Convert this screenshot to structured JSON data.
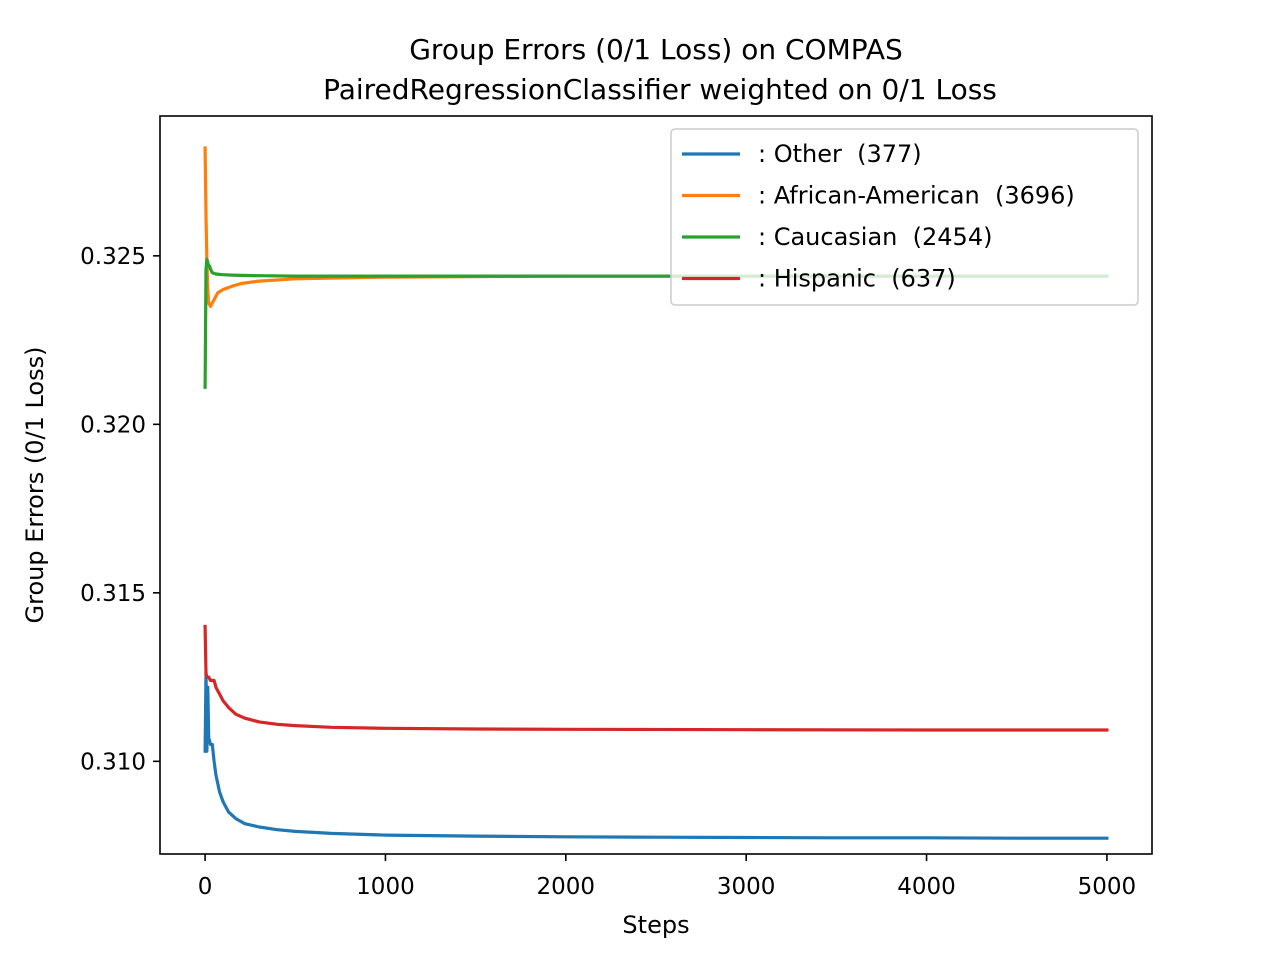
{
  "chart_data": {
    "type": "line",
    "title": "Group Errors (0/1 Loss) on COMPAS",
    "subtitle": "PairedRegressionClassifier weighted on 0/1 Loss",
    "xlabel": "Steps",
    "ylabel": "Group Errors (0/1 Loss)",
    "xlim": [
      -250,
      5250
    ],
    "ylim": [
      0.30725,
      0.32915
    ],
    "xticks": [
      0,
      1000,
      2000,
      3000,
      4000,
      5000
    ],
    "xtick_labels": [
      "0",
      "1000",
      "2000",
      "3000",
      "4000",
      "5000"
    ],
    "yticks": [
      0.31,
      0.315,
      0.32,
      0.325
    ],
    "ytick_labels": [
      "0.310",
      "0.315",
      "0.320",
      "0.325"
    ],
    "grid": false,
    "legend_position": "top-right",
    "series": [
      {
        "name": ": Other  (377)",
        "color": "#1f77b4",
        "x": [
          0,
          5,
          10,
          15,
          20,
          25,
          30,
          40,
          50,
          60,
          80,
          100,
          130,
          170,
          220,
          300,
          400,
          500,
          700,
          1000,
          1500,
          2000,
          2500,
          3000,
          3500,
          4000,
          4500,
          5000
        ],
        "y": [
          0.3103,
          0.3126,
          0.3103,
          0.3122,
          0.3107,
          0.3106,
          0.3105,
          0.3105,
          0.31,
          0.3096,
          0.3091,
          0.3088,
          0.3085,
          0.3083,
          0.30815,
          0.30805,
          0.30797,
          0.30792,
          0.30786,
          0.30781,
          0.30778,
          0.30776,
          0.30775,
          0.30774,
          0.30773,
          0.30773,
          0.30772,
          0.30772
        ]
      },
      {
        "name": ": African-American  (3696)",
        "color": "#ff7f0e",
        "x": [
          0,
          5,
          10,
          15,
          20,
          30,
          40,
          50,
          70,
          100,
          150,
          200,
          300,
          500,
          1000,
          2000,
          3000,
          4000,
          5000
        ],
        "y": [
          0.3282,
          0.3262,
          0.3248,
          0.324,
          0.3236,
          0.3235,
          0.3236,
          0.3237,
          0.3239,
          0.324,
          0.3241,
          0.32418,
          0.32425,
          0.32432,
          0.32437,
          0.3244,
          0.3244,
          0.3244,
          0.3244
        ]
      },
      {
        "name": ": Caucasian  (2454)",
        "color": "#2ca02c",
        "x": [
          0,
          5,
          10,
          15,
          20,
          25,
          30,
          40,
          50,
          60,
          80,
          100,
          150,
          200,
          300,
          500,
          1000,
          2000,
          3000,
          4000,
          5000
        ],
        "y": [
          0.3211,
          0.3246,
          0.3249,
          0.3248,
          0.3247,
          0.3247,
          0.3246,
          0.3245,
          0.32448,
          0.32446,
          0.32445,
          0.32444,
          0.32443,
          0.32442,
          0.32441,
          0.3244,
          0.3244,
          0.3244,
          0.3244,
          0.3244,
          0.3244
        ]
      },
      {
        "name": ": Hispanic  (637)",
        "color": "#d62728",
        "x": [
          0,
          5,
          10,
          20,
          30,
          40,
          50,
          60,
          70,
          80,
          100,
          130,
          170,
          220,
          300,
          400,
          500,
          700,
          1000,
          1500,
          2000,
          3000,
          4000,
          5000
        ],
        "y": [
          0.314,
          0.3126,
          0.3125,
          0.3125,
          0.3124,
          0.3124,
          0.3124,
          0.3122,
          0.3121,
          0.312,
          0.3118,
          0.3116,
          0.3114,
          0.31128,
          0.31117,
          0.3111,
          0.31106,
          0.31101,
          0.31098,
          0.31096,
          0.31095,
          0.31094,
          0.31093,
          0.31093
        ]
      }
    ]
  }
}
